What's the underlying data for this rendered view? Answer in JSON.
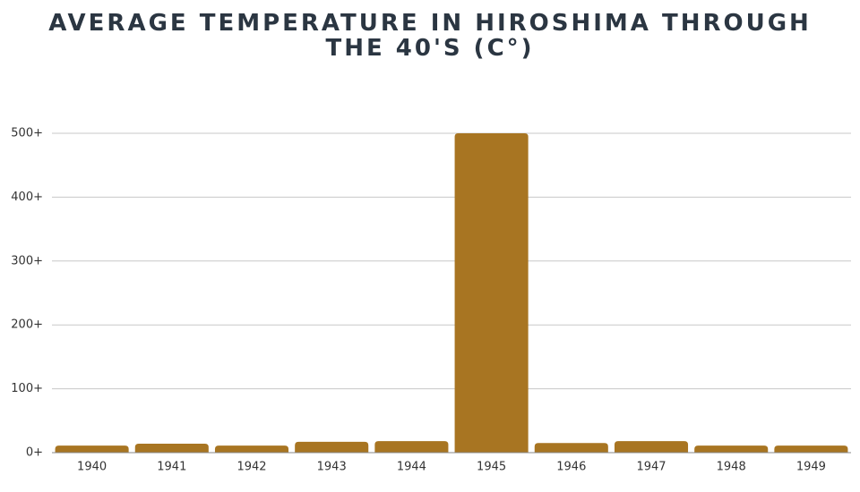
{
  "chart_data": {
    "type": "bar",
    "title": "AVERAGE TEMPERATURE IN HIROSHIMA THROUGH THE 40'S (C°)",
    "categories": [
      "1940",
      "1941",
      "1942",
      "1943",
      "1944",
      "1945",
      "1946",
      "1947",
      "1948",
      "1949"
    ],
    "values": [
      11,
      14,
      11,
      17,
      18,
      500,
      15,
      18,
      11,
      11
    ],
    "color": "#a87522",
    "ylim": [
      0,
      500
    ],
    "yticks": [
      {
        "value": 0,
        "label": "0+"
      },
      {
        "value": 100,
        "label": "100+"
      },
      {
        "value": 200,
        "label": "200+"
      },
      {
        "value": 300,
        "label": "300+"
      },
      {
        "value": 400,
        "label": "400+"
      },
      {
        "value": 500,
        "label": "500+"
      }
    ],
    "grid": true
  }
}
